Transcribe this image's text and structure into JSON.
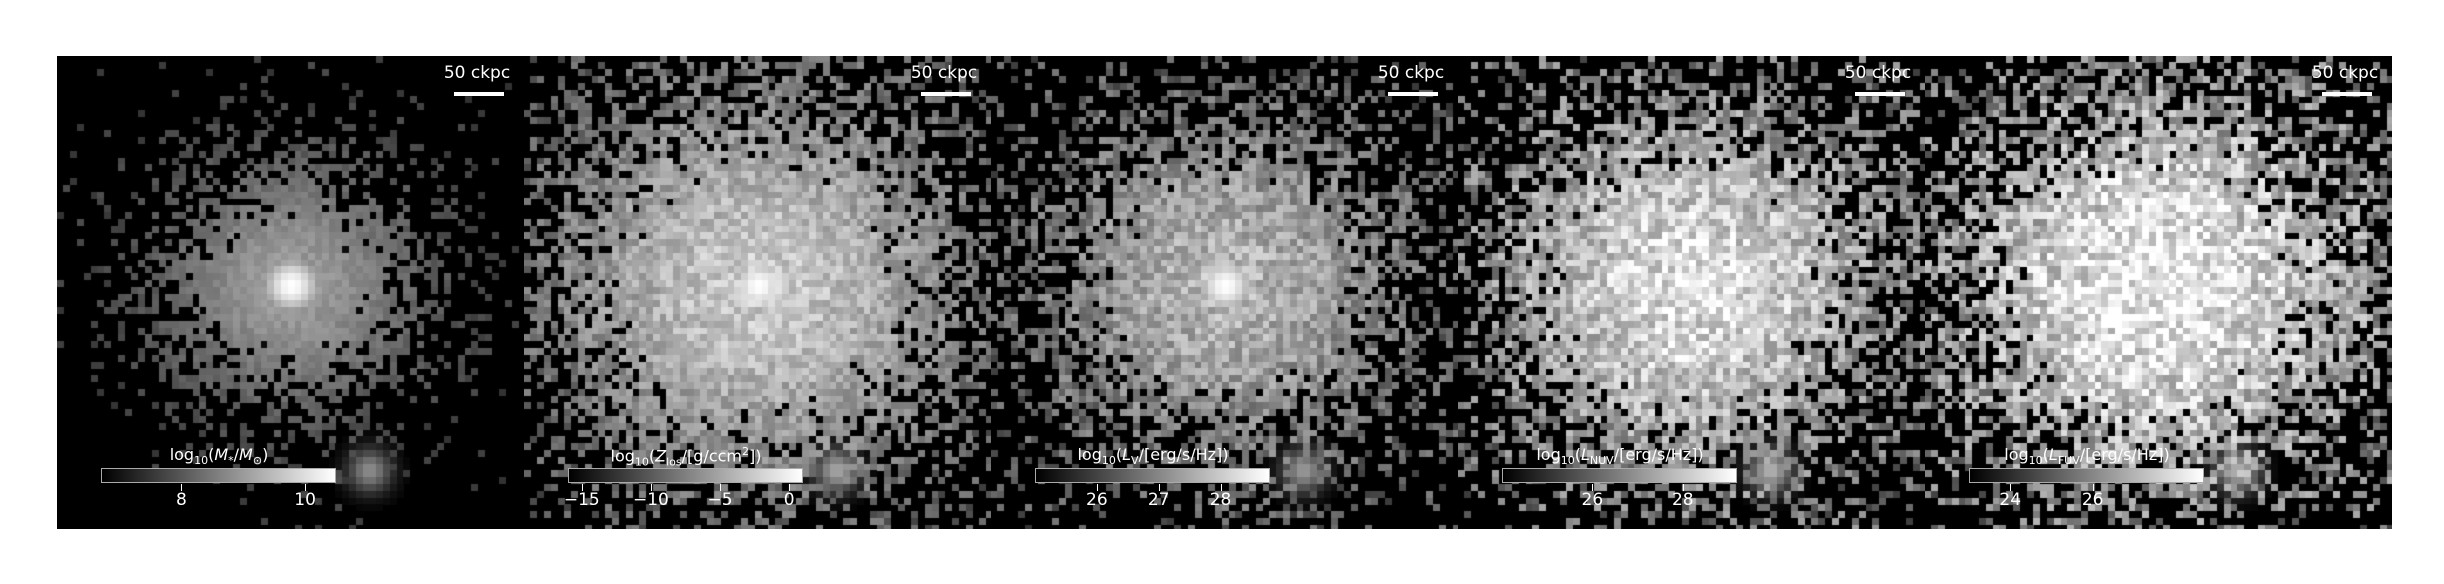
{
  "figure": {
    "panels": [
      {
        "scalebar": "50 ckpc",
        "colorbar": {
          "label_html": "log<sub>10</sub>(<i>M</i><sub>*</sub>/<i>M</i><sub>⊙</sub>)",
          "min": 6.7,
          "max": 10.5,
          "ticks": [
            {
              "value": 8,
              "label": "8"
            },
            {
              "value": 10,
              "label": "10"
            }
          ]
        },
        "image": {
          "bg_density": 0.0,
          "halo_extent": 0.55,
          "halo_strength": 0.55,
          "core_strength": 1.0,
          "ring": true,
          "satellite": 0.55,
          "noise": 0.1
        }
      },
      {
        "scalebar": "50 ckpc",
        "colorbar": {
          "label_html": "log<sub>10</sub>(<i>Z</i><sub>los</sub>/[g/ccm<sup>2</sup>])",
          "min": -16,
          "max": 1,
          "ticks": [
            {
              "value": -15,
              "label": "−15"
            },
            {
              "value": -10,
              "label": "−10"
            },
            {
              "value": -5,
              "label": "−5"
            },
            {
              "value": 0,
              "label": "0"
            }
          ]
        },
        "image": {
          "bg_density": 0.55,
          "halo_extent": 1.0,
          "halo_strength": 0.7,
          "core_strength": 1.0,
          "ring": false,
          "satellite": 0.65,
          "noise": 0.25
        }
      },
      {
        "scalebar": "50 ckpc",
        "colorbar": {
          "label_html": "log<sub>10</sub>(<i>L</i><sub>V</sub>/[erg/s/Hz])",
          "min": 25,
          "max": 28.8,
          "ticks": [
            {
              "value": 26,
              "label": "26"
            },
            {
              "value": 27,
              "label": "27"
            },
            {
              "value": 28,
              "label": "28"
            }
          ]
        },
        "image": {
          "bg_density": 0.45,
          "halo_extent": 0.8,
          "halo_strength": 0.55,
          "core_strength": 1.0,
          "ring": true,
          "satellite": 0.6,
          "noise": 0.3
        }
      },
      {
        "scalebar": "50 ckpc",
        "colorbar": {
          "label_html": "log<sub>10</sub>(<i>L</i><sub>NUV</sub>/[erg/s/Hz])",
          "min": 24,
          "max": 29.2,
          "ticks": [
            {
              "value": 26,
              "label": "26"
            },
            {
              "value": 28,
              "label": "28"
            }
          ]
        },
        "image": {
          "bg_density": 0.55,
          "halo_extent": 0.95,
          "halo_strength": 0.7,
          "core_strength": 0.95,
          "ring": true,
          "satellite": 0.7,
          "noise": 0.4
        }
      },
      {
        "scalebar": "50 ckpc",
        "colorbar": {
          "label_html": "log<sub>10</sub>(<i>L</i><sub>FUV</sub>/[erg/s/Hz])",
          "min": 23,
          "max": 28.7,
          "ticks": [
            {
              "value": 24,
              "label": "24"
            },
            {
              "value": 26,
              "label": "26"
            }
          ]
        },
        "image": {
          "bg_density": 0.55,
          "halo_extent": 1.0,
          "halo_strength": 0.75,
          "core_strength": 0.9,
          "ring": false,
          "satellite": 0.7,
          "noise": 0.45
        }
      }
    ]
  }
}
